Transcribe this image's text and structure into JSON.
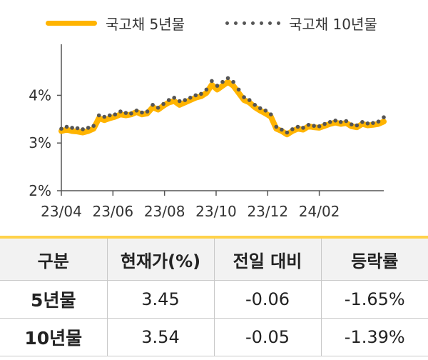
{
  "chart_data": {
    "type": "line",
    "xlabel": "",
    "ylabel": "",
    "ylim": [
      2,
      4.95
    ],
    "y_ticks": [
      "2%",
      "3%",
      "4%"
    ],
    "x_ticks": [
      "23/04",
      "23/06",
      "23/08",
      "23/10",
      "23/12",
      "24/02"
    ],
    "grid": false,
    "legend_position": "top",
    "series": [
      {
        "name": "국고채 5년물",
        "color": "#FFB400",
        "style": "thick-line",
        "points": [
          [
            0,
            3.25
          ],
          [
            1,
            3.28
          ],
          [
            2,
            3.25
          ],
          [
            3,
            3.24
          ],
          [
            4,
            3.22
          ],
          [
            5,
            3.25
          ],
          [
            6,
            3.3
          ],
          [
            7,
            3.52
          ],
          [
            8,
            3.48
          ],
          [
            9,
            3.52
          ],
          [
            10,
            3.55
          ],
          [
            11,
            3.6
          ],
          [
            12,
            3.58
          ],
          [
            13,
            3.6
          ],
          [
            14,
            3.65
          ],
          [
            15,
            3.6
          ],
          [
            16,
            3.62
          ],
          [
            17,
            3.75
          ],
          [
            18,
            3.7
          ],
          [
            19,
            3.78
          ],
          [
            20,
            3.85
          ],
          [
            21,
            3.88
          ],
          [
            22,
            3.8
          ],
          [
            23,
            3.85
          ],
          [
            24,
            3.9
          ],
          [
            25,
            3.95
          ],
          [
            26,
            3.98
          ],
          [
            27,
            4.05
          ],
          [
            28,
            4.22
          ],
          [
            29,
            4.12
          ],
          [
            30,
            4.2
          ],
          [
            31,
            4.28
          ],
          [
            32,
            4.2
          ],
          [
            33,
            4.05
          ],
          [
            34,
            3.9
          ],
          [
            35,
            3.85
          ],
          [
            36,
            3.75
          ],
          [
            37,
            3.68
          ],
          [
            38,
            3.62
          ],
          [
            39,
            3.55
          ],
          [
            40,
            3.3
          ],
          [
            41,
            3.25
          ],
          [
            42,
            3.18
          ],
          [
            43,
            3.25
          ],
          [
            44,
            3.3
          ],
          [
            45,
            3.28
          ],
          [
            46,
            3.35
          ],
          [
            47,
            3.33
          ],
          [
            48,
            3.32
          ],
          [
            49,
            3.36
          ],
          [
            50,
            3.4
          ],
          [
            51,
            3.43
          ],
          [
            52,
            3.4
          ],
          [
            53,
            3.42
          ],
          [
            54,
            3.35
          ],
          [
            55,
            3.33
          ],
          [
            56,
            3.4
          ],
          [
            57,
            3.37
          ],
          [
            58,
            3.38
          ],
          [
            59,
            3.4
          ],
          [
            60,
            3.45
          ]
        ]
      },
      {
        "name": "국고채 10년물",
        "color": "#555555",
        "style": "dotted",
        "points": [
          [
            0,
            3.3
          ],
          [
            1,
            3.34
          ],
          [
            2,
            3.32
          ],
          [
            3,
            3.31
          ],
          [
            4,
            3.29
          ],
          [
            5,
            3.32
          ],
          [
            6,
            3.36
          ],
          [
            7,
            3.58
          ],
          [
            8,
            3.55
          ],
          [
            9,
            3.58
          ],
          [
            10,
            3.6
          ],
          [
            11,
            3.66
          ],
          [
            12,
            3.63
          ],
          [
            13,
            3.62
          ],
          [
            14,
            3.68
          ],
          [
            15,
            3.64
          ],
          [
            16,
            3.66
          ],
          [
            17,
            3.8
          ],
          [
            18,
            3.74
          ],
          [
            19,
            3.82
          ],
          [
            20,
            3.9
          ],
          [
            21,
            3.95
          ],
          [
            22,
            3.88
          ],
          [
            23,
            3.9
          ],
          [
            24,
            3.95
          ],
          [
            25,
            4.0
          ],
          [
            26,
            4.03
          ],
          [
            27,
            4.12
          ],
          [
            28,
            4.3
          ],
          [
            29,
            4.2
          ],
          [
            30,
            4.28
          ],
          [
            31,
            4.36
          ],
          [
            32,
            4.28
          ],
          [
            33,
            4.12
          ],
          [
            34,
            3.96
          ],
          [
            35,
            3.9
          ],
          [
            36,
            3.8
          ],
          [
            37,
            3.73
          ],
          [
            38,
            3.68
          ],
          [
            39,
            3.6
          ],
          [
            40,
            3.34
          ],
          [
            41,
            3.28
          ],
          [
            42,
            3.22
          ],
          [
            43,
            3.29
          ],
          [
            44,
            3.34
          ],
          [
            45,
            3.32
          ],
          [
            46,
            3.38
          ],
          [
            47,
            3.36
          ],
          [
            48,
            3.35
          ],
          [
            49,
            3.4
          ],
          [
            50,
            3.44
          ],
          [
            51,
            3.47
          ],
          [
            52,
            3.44
          ],
          [
            53,
            3.46
          ],
          [
            54,
            3.39
          ],
          [
            55,
            3.37
          ],
          [
            56,
            3.44
          ],
          [
            57,
            3.41
          ],
          [
            58,
            3.42
          ],
          [
            59,
            3.45
          ],
          [
            60,
            3.54
          ]
        ]
      }
    ]
  },
  "table": {
    "headers": [
      "구분",
      "현재가(%)",
      "전일 대비",
      "등락률"
    ],
    "rows": [
      [
        "5년물",
        "3.45",
        "-0.06",
        "-1.65%"
      ],
      [
        "10년물",
        "3.54",
        "-0.05",
        "-1.39%"
      ]
    ]
  }
}
